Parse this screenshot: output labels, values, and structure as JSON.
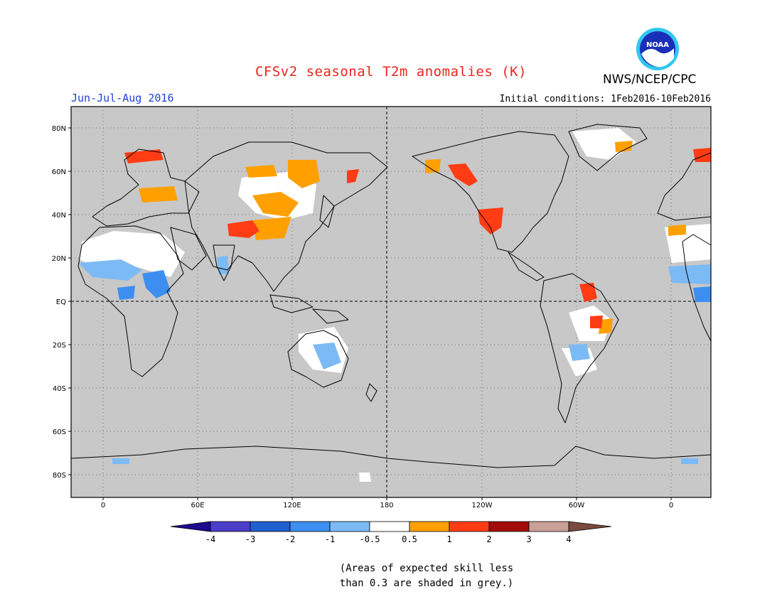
{
  "title": "CFSv2 seasonal T2m anomalies (K)",
  "season": "Jun-Jul-Aug 2016",
  "initial_conditions": "Initial conditions: 1Feb2016-10Feb2016",
  "organization": "NWS/NCEP/CPC",
  "logo_text": "NOAA",
  "lat_labels": [
    "80N",
    "60N",
    "40N",
    "20N",
    "EQ",
    "20S",
    "40S",
    "60S",
    "80S"
  ],
  "lon_labels": [
    "0",
    "60E",
    "120E",
    "180",
    "120W",
    "60W",
    "0"
  ],
  "legend": {
    "labels": [
      "-4",
      "-3",
      "-2",
      "-1",
      "-0.5",
      "0.5",
      "1",
      "2",
      "3",
      "4"
    ],
    "colors": [
      "#1e0a8c",
      "#4a3ec8",
      "#1f5fd0",
      "#3c8ff0",
      "#7cbaf5",
      "#ffffff",
      "#ffa000",
      "#ff3c14",
      "#a30a0a",
      "#c9a096",
      "#7a4a3e"
    ]
  },
  "notes": {
    "line1": "(Areas of expected skill less",
    "line2": "than 0.3 are shaded in grey.)"
  },
  "map": {
    "background_color": "#c8c8c8",
    "lon_range": [
      -20,
      340
    ],
    "lat_range": [
      -90,
      90
    ]
  }
}
